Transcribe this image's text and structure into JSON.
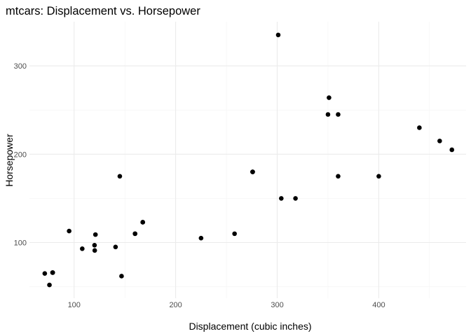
{
  "chart_data": {
    "type": "scatter",
    "title": "mtcars: Displacement vs. Horsepower",
    "xlabel": "Displacement (cubic inches)",
    "ylabel": "Horsepower",
    "xlim": [
      56,
      486
    ],
    "ylim": [
      37,
      350
    ],
    "x_ticks": [
      100,
      200,
      300,
      400
    ],
    "y_ticks": [
      100,
      200,
      300
    ],
    "x_minor_ticks": [
      150,
      250,
      350,
      450
    ],
    "y_minor_ticks": [
      50,
      150,
      250
    ],
    "grid": true,
    "point_color": "#000000",
    "points": [
      {
        "x": 160,
        "y": 110
      },
      {
        "x": 160,
        "y": 110
      },
      {
        "x": 108,
        "y": 93
      },
      {
        "x": 258,
        "y": 110
      },
      {
        "x": 360,
        "y": 175
      },
      {
        "x": 225,
        "y": 105
      },
      {
        "x": 360,
        "y": 245
      },
      {
        "x": 146.7,
        "y": 62
      },
      {
        "x": 140.8,
        "y": 95
      },
      {
        "x": 167.6,
        "y": 123
      },
      {
        "x": 167.6,
        "y": 123
      },
      {
        "x": 275.8,
        "y": 180
      },
      {
        "x": 275.8,
        "y": 180
      },
      {
        "x": 275.8,
        "y": 180
      },
      {
        "x": 472,
        "y": 205
      },
      {
        "x": 460,
        "y": 215
      },
      {
        "x": 440,
        "y": 230
      },
      {
        "x": 78.7,
        "y": 66
      },
      {
        "x": 75.7,
        "y": 52
      },
      {
        "x": 71.1,
        "y": 65
      },
      {
        "x": 120.1,
        "y": 97
      },
      {
        "x": 318,
        "y": 150
      },
      {
        "x": 304,
        "y": 150
      },
      {
        "x": 350,
        "y": 245
      },
      {
        "x": 400,
        "y": 175
      },
      {
        "x": 79,
        "y": 66
      },
      {
        "x": 120.3,
        "y": 91
      },
      {
        "x": 95.1,
        "y": 113
      },
      {
        "x": 351,
        "y": 264
      },
      {
        "x": 145,
        "y": 175
      },
      {
        "x": 301,
        "y": 335
      },
      {
        "x": 121,
        "y": 109
      }
    ]
  }
}
